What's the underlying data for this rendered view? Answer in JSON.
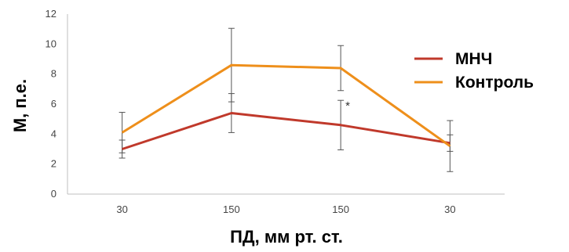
{
  "chart_data": {
    "type": "line",
    "categories": [
      "30",
      "150",
      "150",
      "30"
    ],
    "xlabel": "ПД, мм рт. ст.",
    "ylabel": "М, п.е.",
    "ylim": [
      0,
      12
    ],
    "yticks": [
      0,
      2,
      4,
      6,
      8,
      10,
      12
    ],
    "grid": false,
    "legend_position": "right",
    "series": [
      {
        "name": "МНЧ",
        "color": "#c0392b",
        "values": [
          3.0,
          5.4,
          4.6,
          3.4
        ],
        "errors": [
          0.6,
          1.3,
          1.65,
          0.55
        ]
      },
      {
        "name": "Контроль",
        "color": "#ee8f1b",
        "values": [
          4.1,
          8.6,
          8.4,
          3.2
        ],
        "errors": [
          1.35,
          2.45,
          1.5,
          1.7
        ]
      }
    ],
    "annotations": [
      {
        "text": "*",
        "category_index": 2
      }
    ]
  }
}
